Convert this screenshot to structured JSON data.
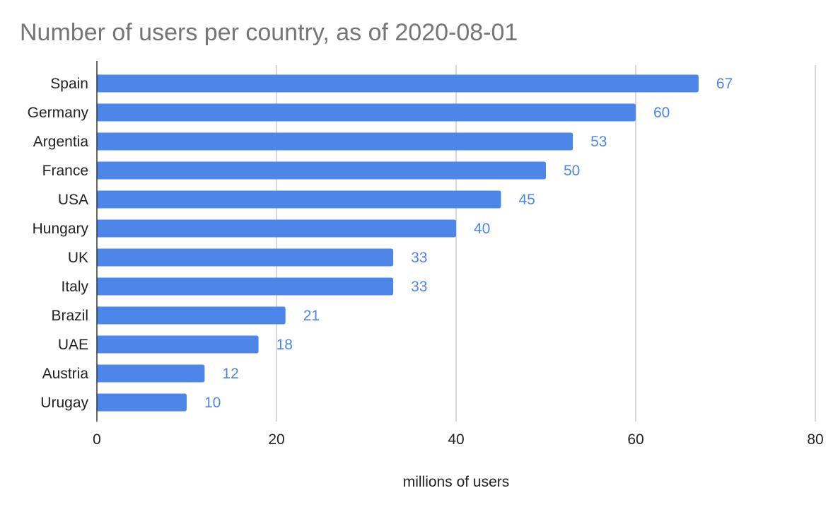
{
  "chart_data": {
    "type": "bar",
    "orientation": "horizontal",
    "title": "Number of users per country, as of 2020-08-01",
    "xlabel": "millions of users",
    "ylabel": "",
    "categories": [
      "Spain",
      "Germany",
      "Argentia",
      "France",
      "USA",
      "Hungary",
      "UK",
      "Italy",
      "Brazil",
      "UAE",
      "Austria",
      "Urugay"
    ],
    "values": [
      67,
      60,
      53,
      50,
      45,
      40,
      33,
      33,
      21,
      18,
      12,
      10
    ],
    "value_labels": [
      "67",
      "60",
      "53",
      "50",
      "45",
      "40",
      "33",
      "33",
      "21",
      "18",
      "12",
      "10"
    ],
    "xlim": [
      0,
      80
    ],
    "xticks": [
      0,
      20,
      40,
      60,
      80
    ],
    "xtick_labels": [
      "0",
      "20",
      "40",
      "60",
      "80"
    ],
    "grid": true,
    "legend": "none",
    "colors": {
      "bar": "#4e85e8",
      "value_label": "#4e85e8",
      "grid": "#cccccc",
      "axis": "#333333",
      "title": "#757575"
    }
  }
}
